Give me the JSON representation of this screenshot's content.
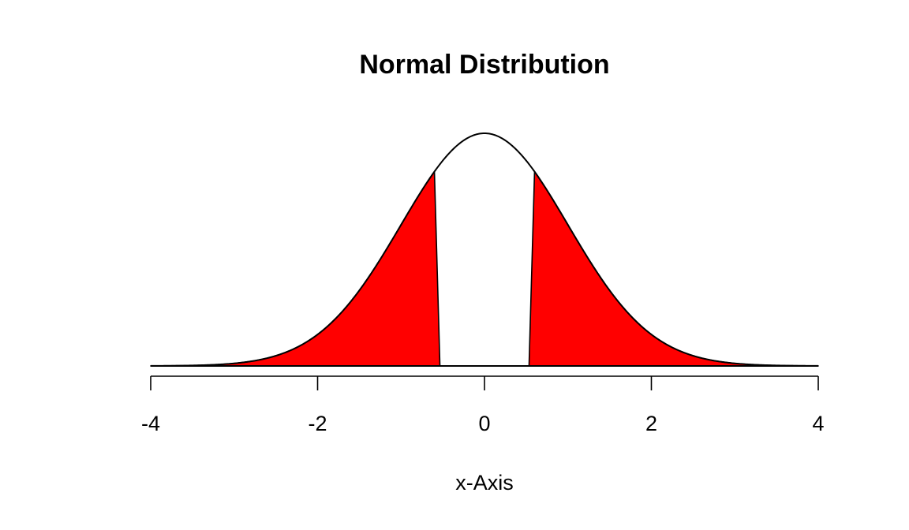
{
  "chart_data": {
    "type": "area",
    "title": "Normal Distribution",
    "xlabel": "x-Axis",
    "ylabel": "",
    "xlim": [
      -4,
      4
    ],
    "x_ticks": [
      -4,
      -2,
      0,
      2,
      4
    ],
    "x_tick_labels": [
      "-4",
      "-2",
      "0",
      "2",
      "4"
    ],
    "y_axis_shown": false,
    "grid": false,
    "legend": "none",
    "series": [
      {
        "distribution": "normal",
        "mean": 0,
        "sd": 1
      }
    ],
    "shaded_regions": [
      {
        "from": -4,
        "to": -0.6,
        "color": "#ff0000"
      },
      {
        "from": 0.6,
        "to": 4,
        "color": "#ff0000"
      }
    ],
    "unshaded_region": {
      "from": -0.6,
      "to": 0.6
    }
  }
}
